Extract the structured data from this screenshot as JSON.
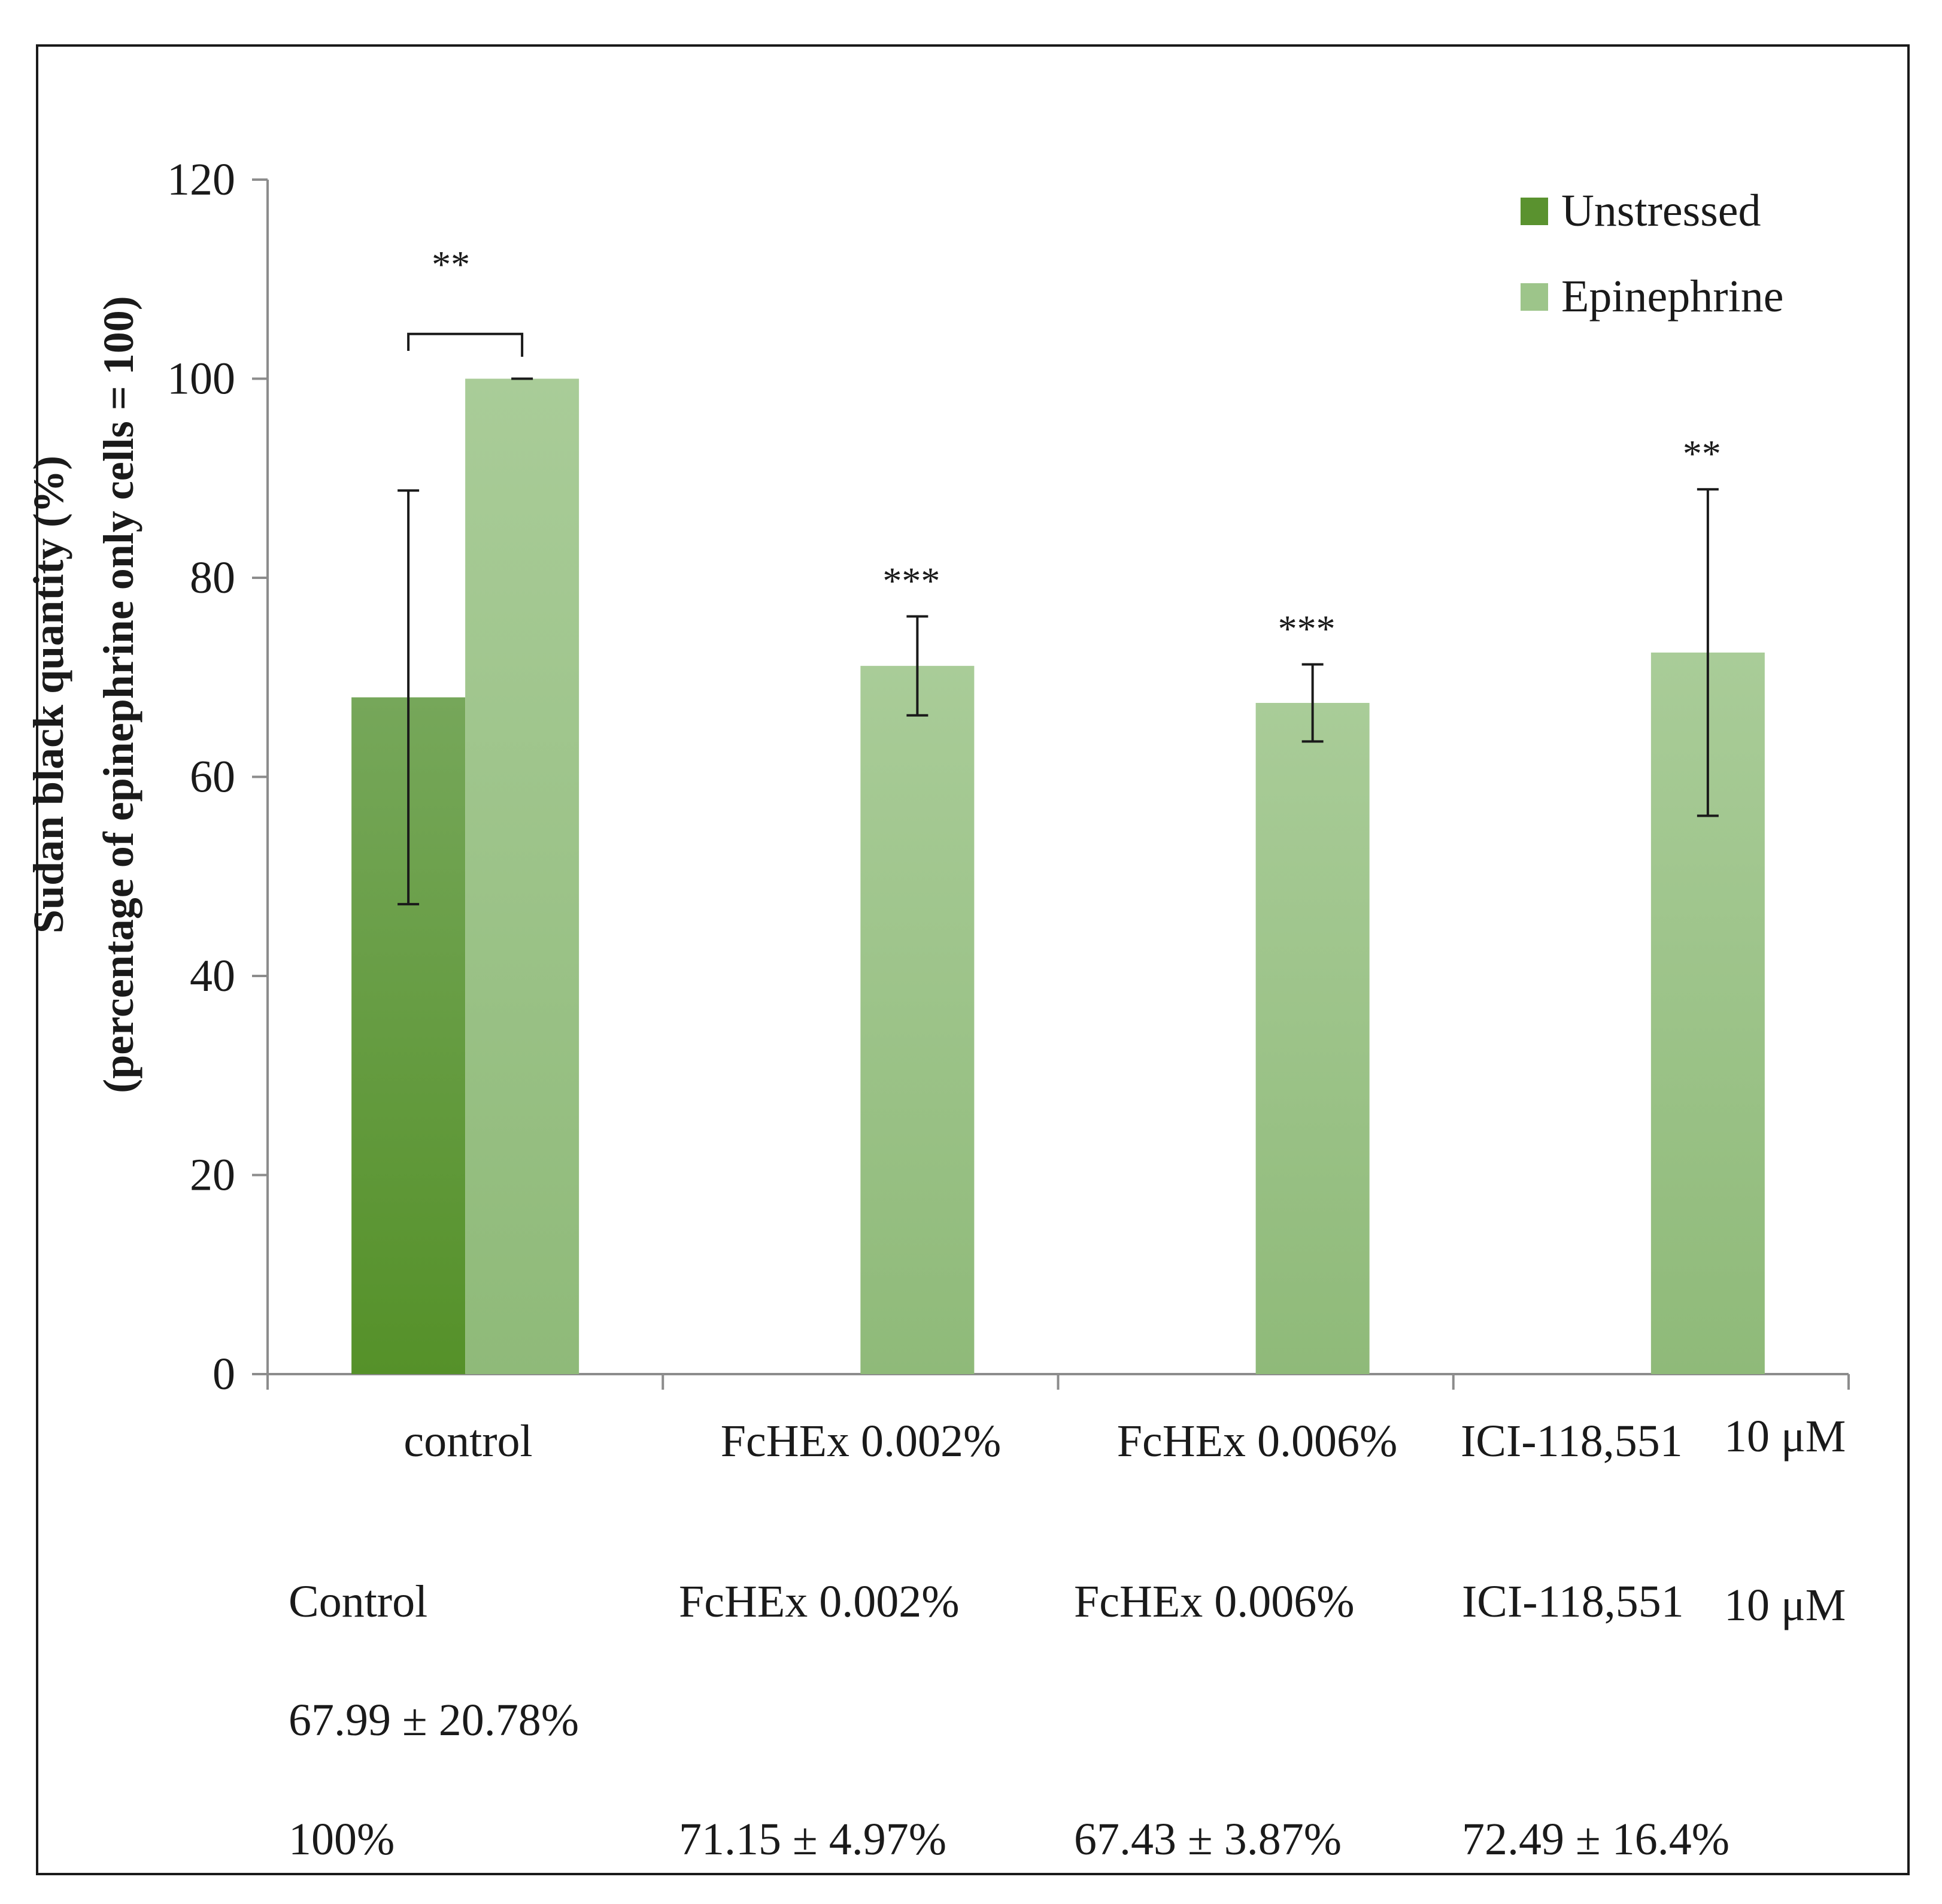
{
  "chart_data": {
    "type": "bar",
    "ylabel_line1": "Sudan black quantity (%)",
    "ylabel_line2": "(percentage of epinephrine only cells = 100)",
    "ylim": [
      0,
      120
    ],
    "yticks": [
      0,
      20,
      40,
      60,
      80,
      100,
      120
    ],
    "categories": [
      {
        "label": "control",
        "unit": ""
      },
      {
        "label": "FcHEx 0.002%",
        "unit": ""
      },
      {
        "label": "FcHEx 0.006%",
        "unit": ""
      },
      {
        "label": "ICI-118,551",
        "unit": "10 μM"
      }
    ],
    "series": [
      {
        "name": "Unstressed",
        "color": "#5a922f",
        "values": [
          67.99,
          null,
          null,
          null
        ],
        "errors": [
          20.78,
          null,
          null,
          null
        ]
      },
      {
        "name": "Epinephrine",
        "color": "#9dc58a",
        "values": [
          100,
          71.15,
          67.43,
          72.49
        ],
        "errors": [
          0,
          4.97,
          3.87,
          16.4
        ]
      }
    ],
    "significance": [
      {
        "category": 0,
        "label": "**",
        "bracket": true
      },
      {
        "category": 1,
        "label": "***",
        "bracket": false
      },
      {
        "category": 2,
        "label": "***",
        "bracket": false
      },
      {
        "category": 3,
        "label": "**",
        "bracket": false
      }
    ],
    "legend_position": "top-right",
    "table": {
      "headers": [
        "Control",
        "FcHEx 0.002%",
        "FcHEx 0.006%",
        "ICI-118,551"
      ],
      "header_units": [
        "",
        "",
        "",
        "10 μM"
      ],
      "rows": [
        [
          "67.99 ± 20.78%",
          "",
          "",
          ""
        ],
        [
          "100%",
          "71.15 ± 4.97%",
          "67.43 ± 3.87%",
          "72.49 ± 16.4%"
        ]
      ]
    }
  }
}
